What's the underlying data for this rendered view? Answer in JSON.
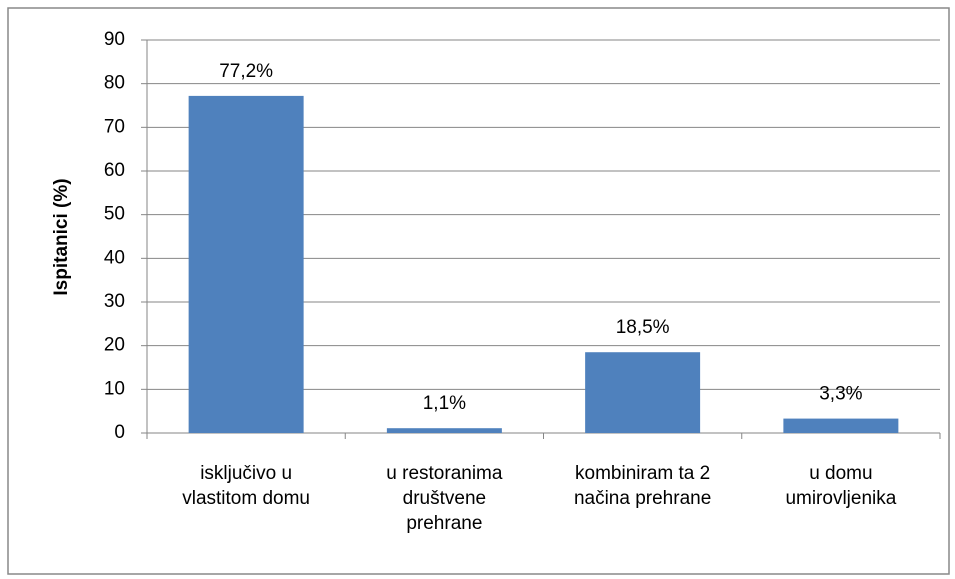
{
  "chart_data": {
    "type": "bar",
    "y_label": "Ispitanici (%)",
    "categories": [
      "isključivo u\nvlastitom domu",
      "u restoranima\ndruštvene\nprehrane",
      "kombiniram ta 2\nnačina prehrane",
      "u domu\numirovljenika"
    ],
    "values": [
      77.2,
      1.1,
      18.5,
      3.3
    ],
    "value_labels": [
      "77,2%",
      "1,1%",
      "18,5%",
      "3,3%"
    ],
    "color": "#4f81bd",
    "ylim": [
      0,
      90
    ],
    "yticks": [
      0,
      10,
      20,
      30,
      40,
      50,
      60,
      70,
      80,
      90
    ],
    "grid": true
  }
}
